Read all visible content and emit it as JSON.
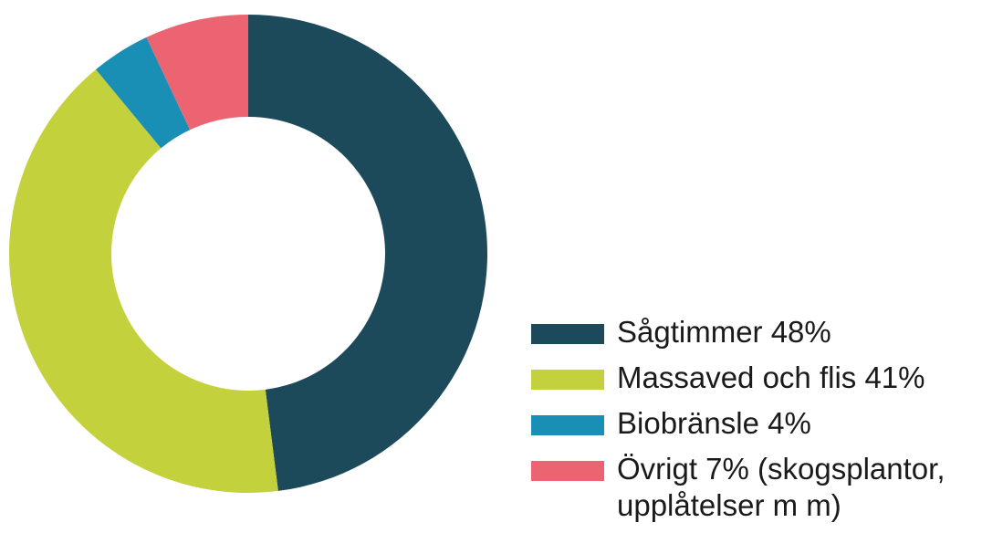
{
  "chart_data": {
    "type": "pie",
    "categories": [
      "Sågtimmer 48%",
      "Massaved och flis 41%",
      "Biobränsle 4%",
      "Övrigt 7% (skogsplantor, upplåtelser m m)"
    ],
    "values": [
      48,
      41,
      4,
      7
    ],
    "colors": [
      "#1c4a5a",
      "#c3d23c",
      "#1a8fb5",
      "#ec6472"
    ],
    "donut": true
  }
}
